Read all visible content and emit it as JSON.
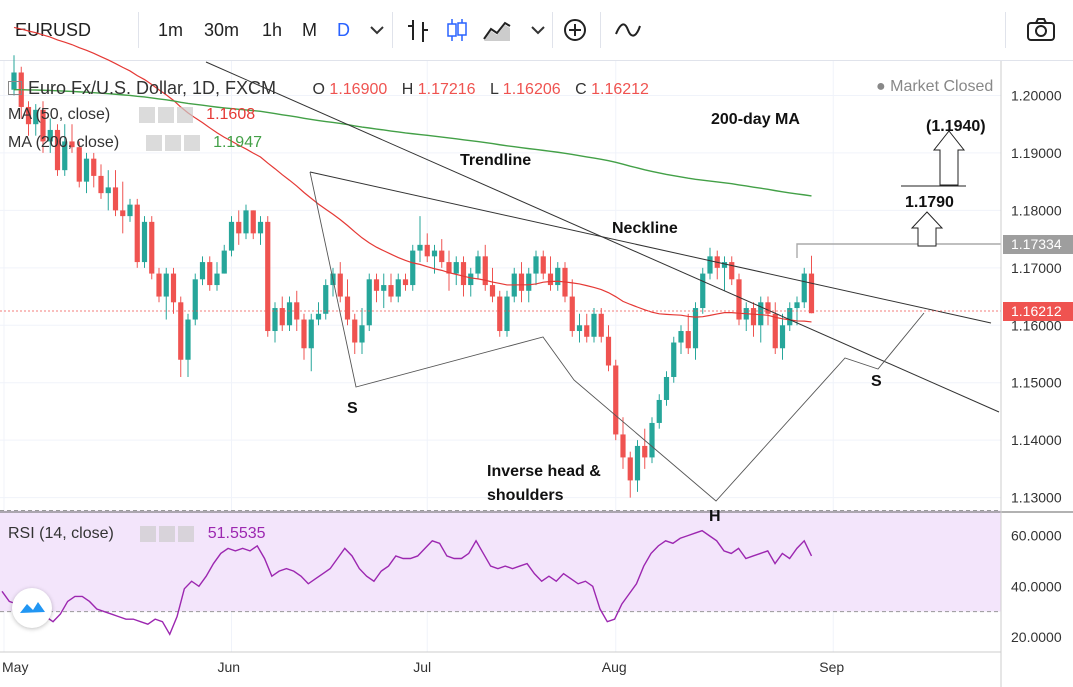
{
  "toolbar": {
    "symbol": "EURUSD",
    "intervals": [
      "1m",
      "30m",
      "1h",
      "M",
      "D"
    ],
    "active_interval": "D",
    "icons": [
      "bar-style-icon",
      "candles-icon",
      "area-icon",
      "chevron-down-icon",
      "add-compare-icon",
      "indicators-icon",
      "camera-icon"
    ]
  },
  "legend": {
    "title": "Euro Fx/U.S. Dollar, 1D, FXCM",
    "o_label": "O",
    "o": "1.16900",
    "h_label": "H",
    "h": "1.17216",
    "l_label": "L",
    "l": "1.16206",
    "c_label": "C",
    "c": "1.16212",
    "ma50_label": "MA (50, close)",
    "ma50_value": "1.1608",
    "ma200_label": "MA (200, close)",
    "ma200_value": "1.1947",
    "market_status": "Market Closed",
    "rsi_label": "RSI (14, close)",
    "rsi_value": "51.5535"
  },
  "colors": {
    "up": "#26a69a",
    "down": "#ef5350",
    "ma50": "#e53935",
    "ma200": "#43a047",
    "rsi": "#9c27b0",
    "rsi_band": "#f3e5fb",
    "trend": "#333333",
    "pattern": "#555555",
    "last_price": "#ef5350"
  },
  "chart_data": [
    {
      "type": "candlestick",
      "x_ticks": [
        "May",
        "Jun",
        "Jul",
        "Aug",
        "Sep"
      ],
      "y_ticks": [
        "1.20000",
        "1.19000",
        "1.18000",
        "1.17000",
        "1.16000",
        "1.15000",
        "1.14000",
        "1.13000"
      ],
      "ylim": [
        1.1275,
        1.206
      ],
      "last_price": "1.16212",
      "marker_price": "1.17334",
      "candles": [
        [
          1.201,
          1.207,
          1.2,
          1.204
        ],
        [
          1.204,
          1.205,
          1.196,
          1.198
        ],
        [
          1.198,
          1.199,
          1.193,
          1.195
        ],
        [
          1.195,
          1.1985,
          1.193,
          1.1975
        ],
        [
          1.1975,
          1.199,
          1.19,
          1.192
        ],
        [
          1.192,
          1.196,
          1.19,
          1.194
        ],
        [
          1.194,
          1.195,
          1.186,
          1.187
        ],
        [
          1.187,
          1.195,
          1.186,
          1.192
        ],
        [
          1.192,
          1.195,
          1.19,
          1.191
        ],
        [
          1.191,
          1.192,
          1.184,
          1.185
        ],
        [
          1.185,
          1.19,
          1.183,
          1.189
        ],
        [
          1.189,
          1.19,
          1.184,
          1.186
        ],
        [
          1.186,
          1.188,
          1.182,
          1.183
        ],
        [
          1.183,
          1.187,
          1.18,
          1.184
        ],
        [
          1.184,
          1.187,
          1.179,
          1.18
        ],
        [
          1.18,
          1.185,
          1.176,
          1.179
        ],
        [
          1.179,
          1.182,
          1.178,
          1.181
        ],
        [
          1.181,
          1.182,
          1.17,
          1.171
        ],
        [
          1.171,
          1.179,
          1.17,
          1.178
        ],
        [
          1.178,
          1.179,
          1.168,
          1.169
        ],
        [
          1.169,
          1.17,
          1.164,
          1.165
        ],
        [
          1.165,
          1.17,
          1.161,
          1.169
        ],
        [
          1.169,
          1.17,
          1.162,
          1.164
        ],
        [
          1.164,
          1.165,
          1.151,
          1.154
        ],
        [
          1.154,
          1.162,
          1.151,
          1.161
        ],
        [
          1.161,
          1.169,
          1.16,
          1.168
        ],
        [
          1.168,
          1.172,
          1.167,
          1.171
        ],
        [
          1.171,
          1.172,
          1.166,
          1.167
        ],
        [
          1.167,
          1.171,
          1.166,
          1.169
        ],
        [
          1.169,
          1.174,
          1.169,
          1.173
        ],
        [
          1.173,
          1.179,
          1.172,
          1.178
        ],
        [
          1.178,
          1.18,
          1.174,
          1.176
        ],
        [
          1.176,
          1.181,
          1.175,
          1.18
        ],
        [
          1.18,
          1.18,
          1.175,
          1.176
        ],
        [
          1.176,
          1.179,
          1.174,
          1.178
        ],
        [
          1.178,
          1.179,
          1.158,
          1.159
        ],
        [
          1.159,
          1.164,
          1.157,
          1.163
        ],
        [
          1.163,
          1.165,
          1.159,
          1.16
        ],
        [
          1.16,
          1.165,
          1.159,
          1.164
        ],
        [
          1.164,
          1.166,
          1.159,
          1.161
        ],
        [
          1.161,
          1.162,
          1.154,
          1.156
        ],
        [
          1.156,
          1.162,
          1.152,
          1.161
        ],
        [
          1.161,
          1.164,
          1.16,
          1.162
        ],
        [
          1.162,
          1.168,
          1.161,
          1.167
        ],
        [
          1.167,
          1.17,
          1.165,
          1.169
        ],
        [
          1.169,
          1.171,
          1.164,
          1.165
        ],
        [
          1.165,
          1.168,
          1.16,
          1.161
        ],
        [
          1.161,
          1.162,
          1.155,
          1.157
        ],
        [
          1.157,
          1.163,
          1.155,
          1.16
        ],
        [
          1.16,
          1.169,
          1.159,
          1.168
        ],
        [
          1.168,
          1.169,
          1.164,
          1.166
        ],
        [
          1.166,
          1.169,
          1.163,
          1.167
        ],
        [
          1.167,
          1.169,
          1.164,
          1.165
        ],
        [
          1.165,
          1.169,
          1.164,
          1.168
        ],
        [
          1.168,
          1.169,
          1.166,
          1.167
        ],
        [
          1.167,
          1.174,
          1.166,
          1.173
        ],
        [
          1.173,
          1.179,
          1.171,
          1.174
        ],
        [
          1.174,
          1.176,
          1.171,
          1.172
        ],
        [
          1.172,
          1.174,
          1.169,
          1.173
        ],
        [
          1.173,
          1.175,
          1.17,
          1.171
        ],
        [
          1.171,
          1.173,
          1.166,
          1.169
        ],
        [
          1.169,
          1.172,
          1.167,
          1.171
        ],
        [
          1.171,
          1.172,
          1.165,
          1.167
        ],
        [
          1.167,
          1.17,
          1.165,
          1.169
        ],
        [
          1.169,
          1.173,
          1.168,
          1.172
        ],
        [
          1.172,
          1.174,
          1.166,
          1.167
        ],
        [
          1.167,
          1.17,
          1.164,
          1.165
        ],
        [
          1.165,
          1.166,
          1.158,
          1.159
        ],
        [
          1.159,
          1.166,
          1.158,
          1.165
        ],
        [
          1.165,
          1.17,
          1.164,
          1.169
        ],
        [
          1.169,
          1.171,
          1.164,
          1.166
        ],
        [
          1.166,
          1.17,
          1.164,
          1.169
        ],
        [
          1.169,
          1.173,
          1.167,
          1.172
        ],
        [
          1.172,
          1.173,
          1.168,
          1.169
        ],
        [
          1.169,
          1.172,
          1.166,
          1.167
        ],
        [
          1.167,
          1.171,
          1.166,
          1.17
        ],
        [
          1.17,
          1.171,
          1.164,
          1.165
        ],
        [
          1.165,
          1.168,
          1.158,
          1.159
        ],
        [
          1.159,
          1.162,
          1.157,
          1.16
        ],
        [
          1.16,
          1.162,
          1.157,
          1.158
        ],
        [
          1.158,
          1.163,
          1.157,
          1.162
        ],
        [
          1.162,
          1.163,
          1.157,
          1.158
        ],
        [
          1.158,
          1.16,
          1.152,
          1.153
        ],
        [
          1.153,
          1.154,
          1.14,
          1.141
        ],
        [
          1.141,
          1.144,
          1.135,
          1.137
        ],
        [
          1.137,
          1.138,
          1.13,
          1.133
        ],
        [
          1.133,
          1.14,
          1.131,
          1.139
        ],
        [
          1.139,
          1.142,
          1.135,
          1.137
        ],
        [
          1.137,
          1.144,
          1.136,
          1.143
        ],
        [
          1.143,
          1.148,
          1.142,
          1.147
        ],
        [
          1.147,
          1.152,
          1.146,
          1.151
        ],
        [
          1.151,
          1.158,
          1.15,
          1.157
        ],
        [
          1.157,
          1.16,
          1.155,
          1.159
        ],
        [
          1.159,
          1.162,
          1.155,
          1.156
        ],
        [
          1.156,
          1.164,
          1.154,
          1.163
        ],
        [
          1.163,
          1.17,
          1.162,
          1.169
        ],
        [
          1.169,
          1.1735,
          1.168,
          1.172
        ],
        [
          1.172,
          1.173,
          1.168,
          1.17
        ],
        [
          1.17,
          1.172,
          1.166,
          1.171
        ],
        [
          1.171,
          1.172,
          1.167,
          1.168
        ],
        [
          1.168,
          1.169,
          1.16,
          1.161
        ],
        [
          1.161,
          1.164,
          1.159,
          1.163
        ],
        [
          1.163,
          1.164,
          1.158,
          1.16
        ],
        [
          1.16,
          1.165,
          1.157,
          1.164
        ],
        [
          1.164,
          1.165,
          1.16,
          1.162
        ],
        [
          1.162,
          1.164,
          1.155,
          1.156
        ],
        [
          1.156,
          1.162,
          1.154,
          1.16
        ],
        [
          1.16,
          1.164,
          1.159,
          1.163
        ],
        [
          1.163,
          1.165,
          1.16,
          1.164
        ],
        [
          1.164,
          1.17,
          1.163,
          1.169
        ],
        [
          1.169,
          1.1721,
          1.1621,
          1.1621
        ]
      ]
    },
    {
      "type": "line",
      "name": "RSI (14, close)",
      "y_ticks": [
        "60.0000",
        "40.0000",
        "20.0000"
      ],
      "ylim": [
        14,
        69
      ],
      "band": [
        30,
        70
      ],
      "values": [
        38,
        34,
        33,
        32,
        29,
        28,
        28,
        26,
        29,
        34,
        36,
        36,
        34,
        31,
        30,
        29,
        28,
        27,
        27,
        26,
        25,
        27,
        26,
        21,
        28,
        39,
        42,
        40,
        44,
        49,
        53,
        55,
        54,
        55,
        54,
        56,
        51,
        44,
        46,
        47,
        46,
        44,
        41,
        43,
        45,
        47,
        51,
        55,
        52,
        47,
        44,
        42,
        46,
        48,
        52,
        51,
        51,
        52,
        55,
        58,
        57,
        52,
        51,
        51,
        53,
        58,
        53,
        48,
        47,
        48,
        47,
        48,
        49,
        45,
        42,
        44,
        42,
        45,
        43,
        41,
        42,
        40,
        31,
        26,
        27,
        33,
        37,
        41,
        48,
        53,
        56,
        58,
        57,
        59,
        60,
        61,
        62,
        60,
        58,
        54,
        53,
        55,
        51,
        52,
        53,
        54,
        49,
        53,
        51,
        55,
        58,
        52
      ],
      "x_ticks": [
        "May",
        "Jun",
        "Jul",
        "Aug",
        "Sep"
      ]
    }
  ],
  "annotations": {
    "trendline": "Trendline",
    "neckline": "Neckline",
    "ma200_note": "200-day MA",
    "pattern": "Inverse head &",
    "pattern2": "shoulders",
    "left_shoulder": "S",
    "head": "H",
    "right_shoulder": "S",
    "target1": "1.1790",
    "target2": "(1.1940)"
  }
}
